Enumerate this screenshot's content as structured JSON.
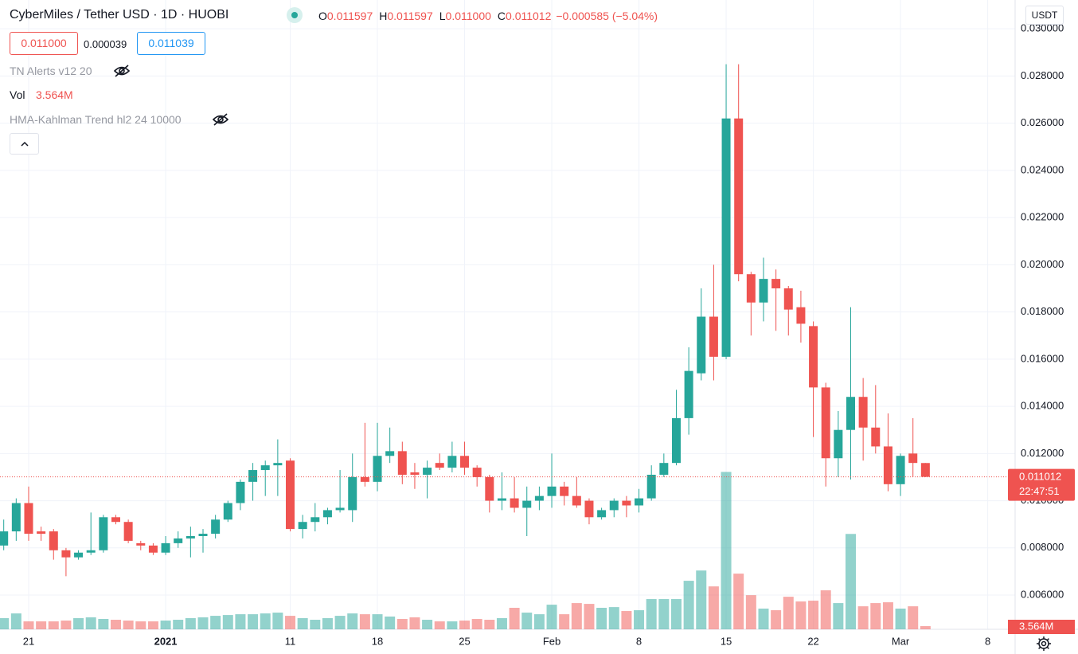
{
  "chart_data": {
    "type": "candlestick",
    "title": "CyberMiles / Tether USD · 1D · HUOBI",
    "ohlc_legend": [
      [
        "O",
        "0.011597"
      ],
      [
        "H",
        "0.011597"
      ],
      [
        "L",
        "0.011000"
      ],
      [
        "C",
        "0.011012"
      ]
    ],
    "change": "−0.000585 (−5.04%)",
    "bid": "0.011000",
    "spread": "0.000039",
    "ask": "0.011039",
    "indicators": [
      "TN Alerts v12 20",
      "Vol",
      "HMA-Kahlman Trend hl2 24 10000"
    ],
    "volume_label": "3.564M",
    "currency": "USDT",
    "last_price_label": "0.011012",
    "countdown": "22:47:51",
    "up_color": "#26a69a",
    "down_color": "#ef5350",
    "open": [
      0.0081,
      0.0087,
      0.0099,
      0.0087,
      0.0087,
      0.0079,
      0.0076,
      0.0078,
      0.0079,
      0.0093,
      0.0091,
      0.0082,
      0.0081,
      0.0078,
      0.0082,
      0.0084,
      0.0085,
      0.0086,
      0.0092,
      0.0099,
      0.0108,
      0.0113,
      0.0115,
      0.0117,
      0.0088,
      0.0091,
      0.0093,
      0.0096,
      0.0096,
      0.011,
      0.0108,
      0.0119,
      0.0121,
      0.0112,
      0.0111,
      0.0116,
      0.0114,
      0.0119,
      0.0114,
      0.011,
      0.01,
      0.0101,
      0.0097,
      0.01,
      0.0102,
      0.0106,
      0.0102,
      0.01,
      0.0093,
      0.0096,
      0.01,
      0.0098,
      0.0101,
      0.0111,
      0.0116,
      0.0135,
      0.0154,
      0.0178,
      0.0161,
      0.0262,
      0.0196,
      0.0184,
      0.0194,
      0.019,
      0.0182,
      0.0174,
      0.0148,
      0.0118,
      0.013,
      0.0144,
      0.0131,
      0.0123,
      0.0107,
      0.012,
      0.011597
    ],
    "high": [
      0.0092,
      0.0101,
      0.0106,
      0.0089,
      0.0088,
      0.008,
      0.0079,
      0.0095,
      0.0094,
      0.0094,
      0.0092,
      0.0083,
      0.0082,
      0.0085,
      0.0087,
      0.0089,
      0.0088,
      0.0094,
      0.01,
      0.0109,
      0.0116,
      0.0117,
      0.0126,
      0.0118,
      0.0094,
      0.0099,
      0.0097,
      0.0113,
      0.012,
      0.0133,
      0.0133,
      0.0131,
      0.0125,
      0.0116,
      0.0117,
      0.012,
      0.0125,
      0.0125,
      0.0115,
      0.0111,
      0.0112,
      0.011,
      0.0106,
      0.0106,
      0.012,
      0.0108,
      0.011,
      0.0101,
      0.0097,
      0.0101,
      0.0102,
      0.0105,
      0.0115,
      0.012,
      0.0147,
      0.0165,
      0.019,
      0.02,
      0.0285,
      0.0285,
      0.0197,
      0.0203,
      0.0198,
      0.0191,
      0.0189,
      0.0176,
      0.015,
      0.0138,
      0.0182,
      0.0152,
      0.0149,
      0.0137,
      0.012,
      0.0135,
      0.011597
    ],
    "low": [
      0.0079,
      0.0083,
      0.0083,
      0.0083,
      0.0075,
      0.0068,
      0.0075,
      0.0077,
      0.0078,
      0.009,
      0.0082,
      0.0079,
      0.0077,
      0.0077,
      0.008,
      0.0076,
      0.0078,
      0.0084,
      0.0091,
      0.0096,
      0.01,
      0.0102,
      0.0102,
      0.0087,
      0.0084,
      0.0087,
      0.009,
      0.0095,
      0.0091,
      0.0106,
      0.0104,
      0.0116,
      0.0107,
      0.0105,
      0.0101,
      0.0113,
      0.0112,
      0.0111,
      0.0106,
      0.0095,
      0.0096,
      0.0095,
      0.0085,
      0.0096,
      0.0097,
      0.0098,
      0.0097,
      0.009,
      0.0092,
      0.0093,
      0.0093,
      0.0095,
      0.01,
      0.011,
      0.0115,
      0.0128,
      0.0151,
      0.0151,
      0.016,
      0.0193,
      0.017,
      0.0176,
      0.0172,
      0.017,
      0.0167,
      0.0127,
      0.0106,
      0.011,
      0.0109,
      0.0117,
      0.012,
      0.0104,
      0.0102,
      0.011,
      0.011
    ],
    "close": [
      0.0087,
      0.0099,
      0.0086,
      0.0086,
      0.0079,
      0.0076,
      0.0078,
      0.0079,
      0.0093,
      0.0091,
      0.0083,
      0.0081,
      0.0078,
      0.0082,
      0.0084,
      0.0085,
      0.0086,
      0.0092,
      0.0099,
      0.0108,
      0.0113,
      0.0115,
      0.0116,
      0.0088,
      0.0091,
      0.0093,
      0.0096,
      0.0097,
      0.011,
      0.0108,
      0.0119,
      0.0121,
      0.0111,
      0.0111,
      0.0114,
      0.0114,
      0.0119,
      0.0114,
      0.011,
      0.01,
      0.0101,
      0.0097,
      0.01,
      0.0102,
      0.0106,
      0.0102,
      0.0098,
      0.0093,
      0.0096,
      0.01,
      0.0098,
      0.0101,
      0.0111,
      0.0116,
      0.0135,
      0.0155,
      0.0178,
      0.0161,
      0.0262,
      0.0196,
      0.0184,
      0.0194,
      0.019,
      0.0181,
      0.0175,
      0.0148,
      0.0118,
      0.013,
      0.0144,
      0.0131,
      0.0123,
      0.0107,
      0.0119,
      0.0116,
      0.011012
    ],
    "volume": [
      12.5,
      17.8,
      8.9,
      8.9,
      8.9,
      9.8,
      12.5,
      13.4,
      11.6,
      10.7,
      9.8,
      8.9,
      8.9,
      9.8,
      10.7,
      12.5,
      13.4,
      15.1,
      16.0,
      16.9,
      16.9,
      17.8,
      18.7,
      15.1,
      12.5,
      10.7,
      12.5,
      15.1,
      17.8,
      16.9,
      16.9,
      14.3,
      11.6,
      13.4,
      10.7,
      8.9,
      8.9,
      9.8,
      11.6,
      10.7,
      12.5,
      24.1,
      18.7,
      16.9,
      27.6,
      16.9,
      29.4,
      28.5,
      24.1,
      24.9,
      20.5,
      21.4,
      33.9,
      33.9,
      33.9,
      54.4,
      65.9,
      48.1,
      176.4,
      62.4,
      38.3,
      23.2,
      21.4,
      36.5,
      31.2,
      32.1,
      43.7,
      29.4,
      106.9,
      25.8,
      29.4,
      30.3,
      23.2,
      25.8,
      3.564
    ],
    "volume_ylim": [
      0,
      250
    ],
    "xlim": [
      -0.3,
      81.2
    ],
    "xticks": [
      {
        "value": 2,
        "label": "21"
      },
      {
        "value": 13,
        "label": "2021"
      },
      {
        "value": 23,
        "label": "11"
      },
      {
        "value": 30,
        "label": "18"
      },
      {
        "value": 37,
        "label": "25"
      },
      {
        "value": 44,
        "label": "Feb"
      },
      {
        "value": 51,
        "label": "8"
      },
      {
        "value": 58,
        "label": "15"
      },
      {
        "value": 65,
        "label": "22"
      },
      {
        "value": 72,
        "label": "Mar"
      },
      {
        "value": 79,
        "label": "8"
      }
    ],
    "ylim": [
      0.00455,
      0.03122
    ],
    "yticks": [
      {
        "value": 0.006,
        "label": "0.006000"
      },
      {
        "value": 0.008,
        "label": "0.008000"
      },
      {
        "value": 0.01,
        "label": "0.010000"
      },
      {
        "value": 0.012,
        "label": "0.012000"
      },
      {
        "value": 0.014,
        "label": "0.014000"
      },
      {
        "value": 0.016,
        "label": "0.016000"
      },
      {
        "value": 0.018,
        "label": "0.018000"
      },
      {
        "value": 0.02,
        "label": "0.020000"
      },
      {
        "value": 0.022,
        "label": "0.022000"
      },
      {
        "value": 0.024,
        "label": "0.024000"
      },
      {
        "value": 0.026,
        "label": "0.026000"
      },
      {
        "value": 0.028,
        "label": "0.028000"
      },
      {
        "value": 0.03,
        "label": "0.030000"
      }
    ],
    "grid": true
  }
}
